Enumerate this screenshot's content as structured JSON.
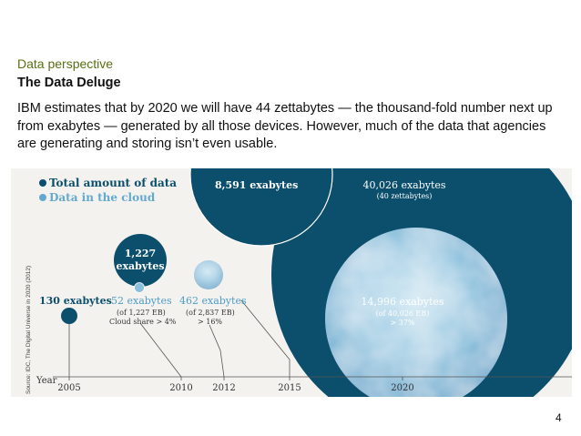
{
  "slide": {
    "section": "Data perspective",
    "title": "The Data Deluge",
    "intro": "IBM estimates that by 2020 we will have 44 zettabytes — the thousand-fold number next up from exabytes — generated by all those devices. However, much of the data that agencies are generating and storing isn’t even usable.",
    "page_number": "4"
  },
  "chart_data": {
    "type": "bubble",
    "title": "",
    "xlabel": "Year",
    "legend": [
      {
        "label": "Total amount of data",
        "color": "#0b4f6c"
      },
      {
        "label": "Data in the cloud",
        "color": "#62a9cd"
      }
    ],
    "source": "Source: IDC, The Digital Universe in 2020 (2012)",
    "categories": [
      "2005",
      "2010",
      "2012",
      "2015",
      "2020"
    ],
    "series": [
      {
        "name": "Total amount of data",
        "unit": "exabytes",
        "values": [
          130,
          1227,
          2837,
          8591,
          40026
        ]
      },
      {
        "name": "Data in the cloud",
        "unit": "exabytes",
        "values": [
          null,
          52,
          462,
          null,
          14996
        ]
      }
    ],
    "labels": {
      "t2005": "130 exabytes",
      "t2010_value": "1,227",
      "t2010_unit": "exabytes",
      "c2010_value": "52 exabytes",
      "c2010_of": "(of 1,227 EB)",
      "c2010_share": "Cloud share > 4%",
      "c2012_value": "462 exabytes",
      "c2012_of": "(of 2,837 EB)",
      "c2012_share": "> 16%",
      "t2015": "8,591 exabytes",
      "t2020": "40,026 exabytes",
      "t2020_sub": "(40 zettabytes)",
      "c2020_value": "14,996 exabytes",
      "c2020_of": "(of 40,026 EB)",
      "c2020_share": "> 37%"
    }
  }
}
